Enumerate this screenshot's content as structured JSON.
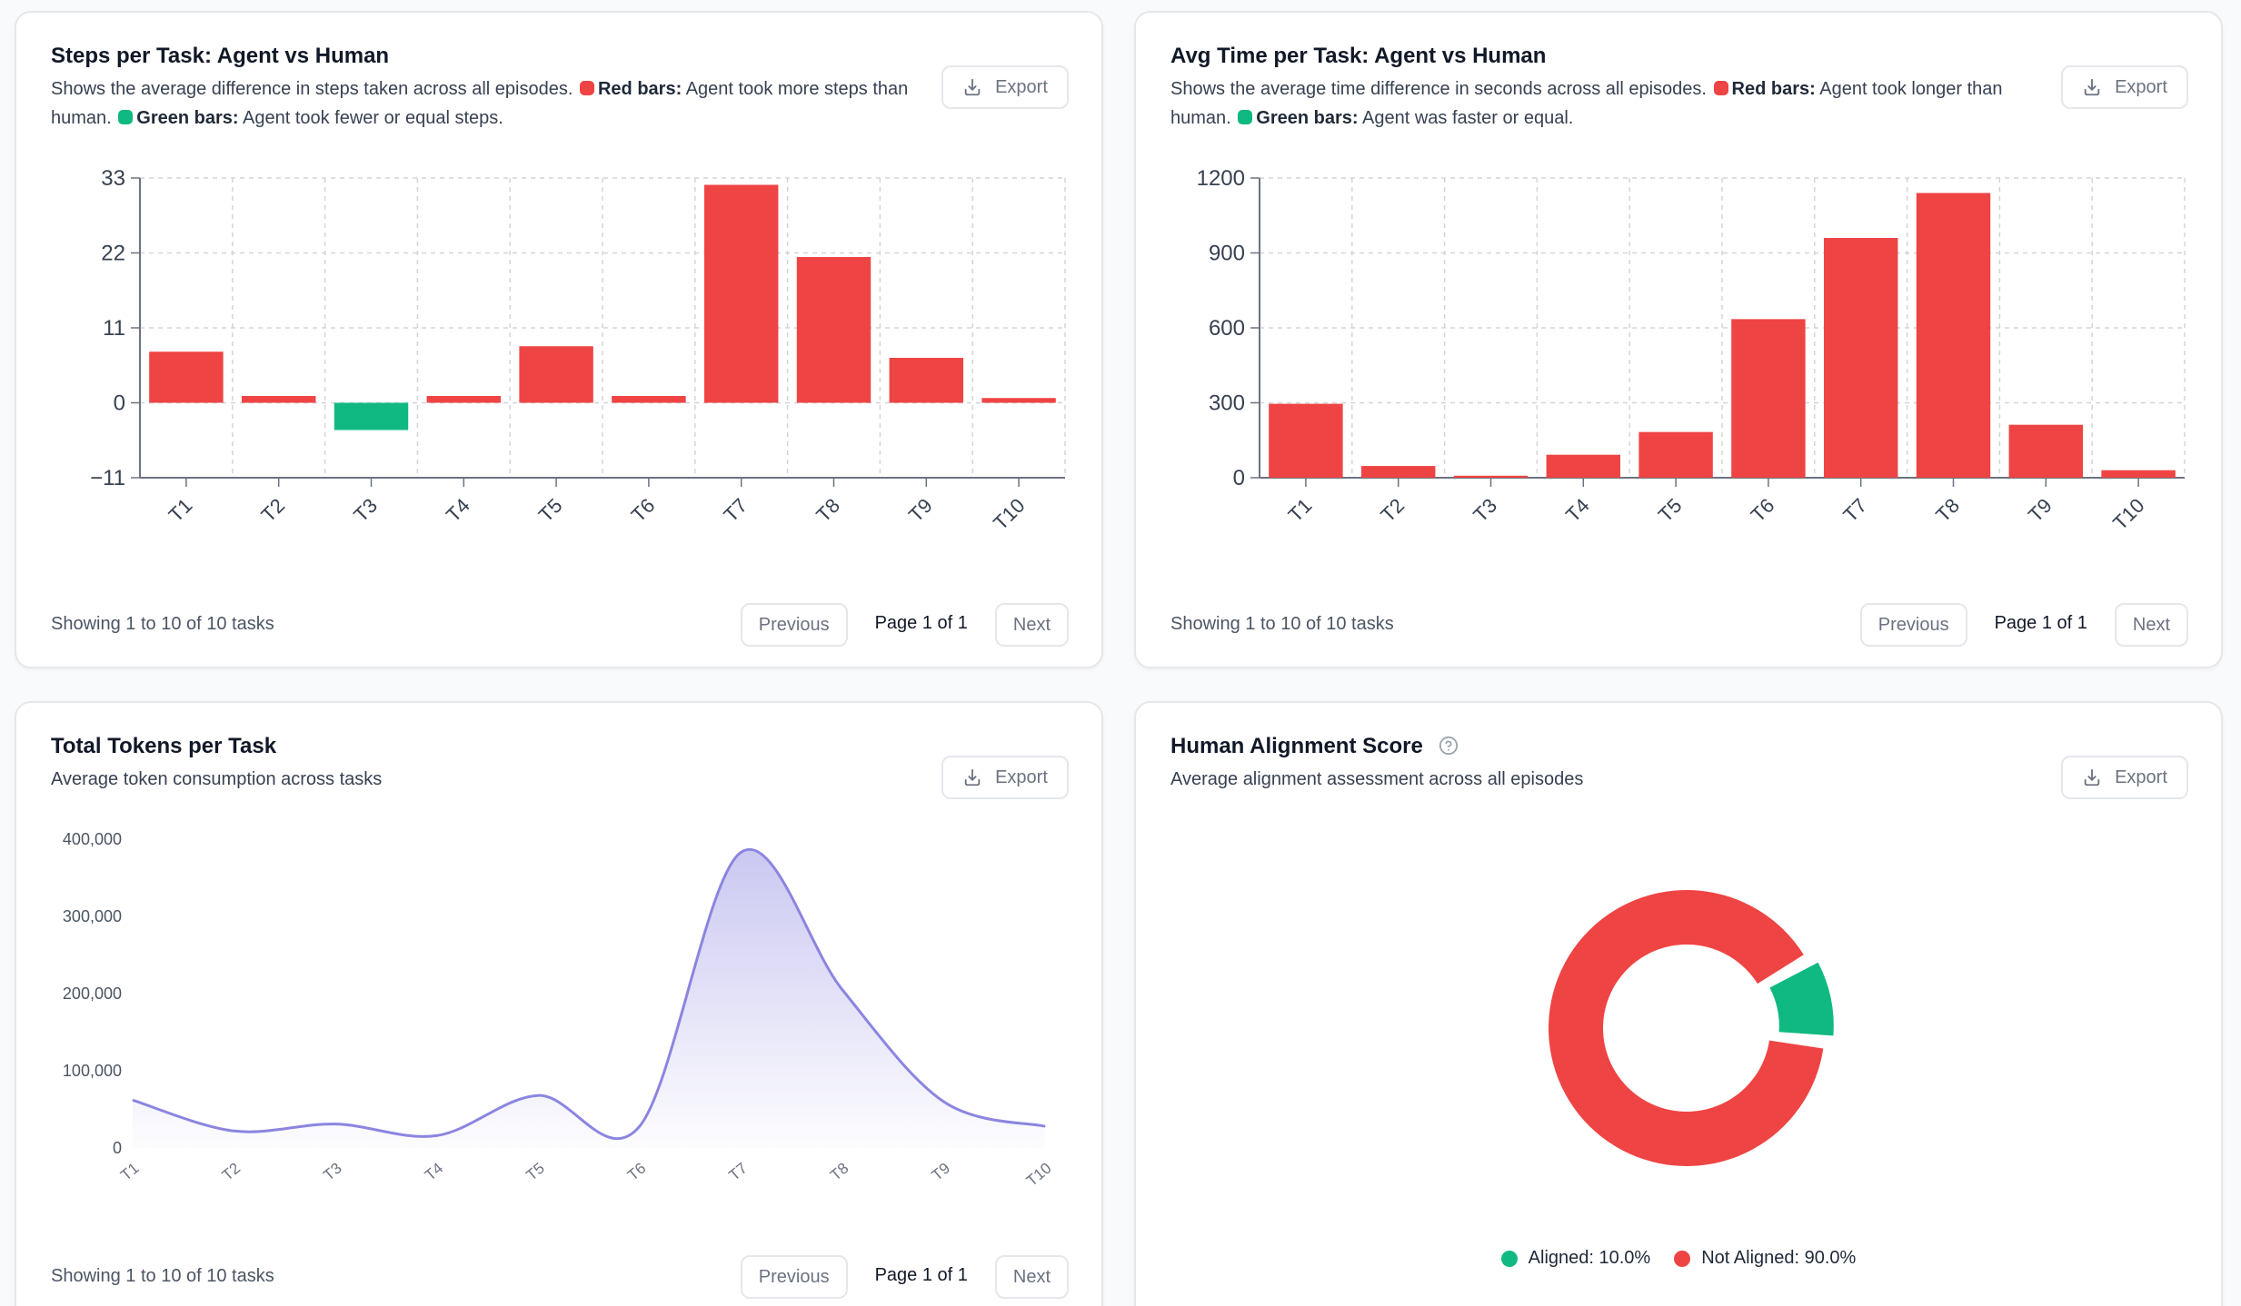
{
  "colors": {
    "red": "#ef4444",
    "green": "#10b981",
    "purple": "#8b85e0",
    "grid": "#d1d5db",
    "axis": "#6b7280"
  },
  "common": {
    "export_label": "Export",
    "export_icon": "download-icon",
    "showing": "Showing 1 to 10 of 10 tasks",
    "previous": "Previous",
    "page": "Page 1 of 1",
    "next": "Next"
  },
  "steps_card": {
    "title": "Steps per Task: Agent vs Human",
    "desc_intro": "Shows the average difference in steps taken across all episodes.",
    "red_label": "Red bars:",
    "red_text": "Agent took more steps than human.",
    "green_label": "Green bars:",
    "green_text": "Agent took fewer or equal steps."
  },
  "time_card": {
    "title": "Avg Time per Task: Agent vs Human",
    "desc_intro": "Shows the average time difference in seconds across all episodes.",
    "red_label": "Red bars:",
    "red_text": "Agent took longer than human.",
    "green_label": "Green bars:",
    "green_text": "Agent was faster or equal."
  },
  "tokens_card": {
    "title": "Total Tokens per Task",
    "desc": "Average token consumption across tasks"
  },
  "align_card": {
    "title": "Human Alignment Score",
    "help_icon": "question-circle-icon",
    "desc": "Average alignment assessment across all episodes",
    "legend": [
      {
        "label": "Aligned: 10.0%",
        "color": "#10b981"
      },
      {
        "label": "Not Aligned: 90.0%",
        "color": "#ef4444"
      }
    ]
  },
  "chart_data": [
    {
      "id": "steps",
      "type": "bar",
      "title": "Steps per Task: Agent vs Human",
      "categories": [
        "T1",
        "T2",
        "T3",
        "T4",
        "T5",
        "T6",
        "T7",
        "T8",
        "T9",
        "T10"
      ],
      "values": [
        7.5,
        1,
        -4,
        1,
        8.3,
        1,
        32,
        21.4,
        6.6,
        0.7
      ],
      "ylim": [
        -11,
        33
      ],
      "yticks": [
        -11,
        0,
        11,
        22,
        33
      ],
      "ytick_labels": [
        "−11",
        "0",
        "11",
        "22",
        "33"
      ],
      "grid": true
    },
    {
      "id": "time",
      "type": "bar",
      "title": "Avg Time per Task: Agent vs Human",
      "categories": [
        "T1",
        "T2",
        "T3",
        "T4",
        "T5",
        "T6",
        "T7",
        "T8",
        "T9",
        "T10"
      ],
      "values": [
        296,
        47,
        8,
        92,
        183,
        635,
        960,
        1140,
        212,
        30
      ],
      "ylim": [
        0,
        1200
      ],
      "yticks": [
        0,
        300,
        600,
        900,
        1200
      ],
      "ytick_labels": [
        "0",
        "300",
        "600",
        "900",
        "1200"
      ],
      "grid": true
    },
    {
      "id": "tokens",
      "type": "area",
      "title": "Total Tokens per Task",
      "categories": [
        "T1",
        "T2",
        "T3",
        "T4",
        "T5",
        "T6",
        "T7",
        "T8",
        "T9",
        "T10"
      ],
      "values": [
        62000,
        22000,
        31000,
        16000,
        68000,
        28000,
        383000,
        205000,
        60000,
        28000
      ],
      "ylim": [
        0,
        400000
      ],
      "yticks": [
        0,
        100000,
        200000,
        300000,
        400000
      ],
      "ytick_labels": [
        "0",
        "100,000",
        "200,000",
        "300,000",
        "400,000"
      ],
      "grid": false
    },
    {
      "id": "alignment",
      "type": "pie",
      "title": "Human Alignment Score",
      "labels": [
        "Aligned",
        "Not Aligned"
      ],
      "values": [
        10.0,
        90.0
      ],
      "colors": [
        "#10b981",
        "#ef4444"
      ]
    }
  ]
}
